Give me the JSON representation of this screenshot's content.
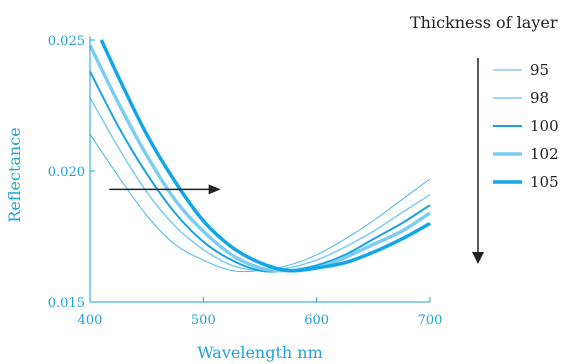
{
  "chart_data": {
    "type": "line",
    "xlabel": "Wavelength nm",
    "ylabel": "Reflectance",
    "xlim": [
      400,
      700
    ],
    "ylim": [
      0.015,
      0.025
    ],
    "xticks": [
      400,
      500,
      600,
      700
    ],
    "xtick_labels": [
      "400",
      "500",
      "600",
      "700"
    ],
    "yticks": [
      0.015,
      0.02,
      0.025
    ],
    "ytick_labels": [
      "0.015",
      "0.020",
      "0.025"
    ],
    "grid": false,
    "legend_title": "Thickness of layer",
    "legend_position": "right",
    "series": [
      {
        "name": "95",
        "color": "#4ab7e8",
        "width": 1.0,
        "min_x": 530,
        "min_y": 0.0162,
        "x": [
          400,
          425,
          450,
          475,
          500,
          525,
          550,
          575,
          600,
          625,
          650,
          675,
          700
        ],
        "y": [
          0.0214,
          0.0198,
          0.0183,
          0.0172,
          0.0166,
          0.0162,
          0.0162,
          0.0164,
          0.0168,
          0.0174,
          0.0181,
          0.0189,
          0.0197
        ]
      },
      {
        "name": "98",
        "color": "#7ccdf1",
        "width": 1.5,
        "min_x": 545,
        "min_y": 0.0162,
        "x": [
          400,
          425,
          450,
          475,
          500,
          525,
          550,
          575,
          600,
          625,
          650,
          675,
          700
        ],
        "y": [
          0.0228,
          0.0209,
          0.0192,
          0.0179,
          0.017,
          0.0164,
          0.0162,
          0.0163,
          0.0166,
          0.0171,
          0.0177,
          0.0184,
          0.0191
        ]
      },
      {
        "name": "100",
        "color": "#1aa3e0",
        "width": 2.0,
        "min_x": 555,
        "min_y": 0.0162,
        "x": [
          400,
          425,
          450,
          475,
          500,
          525,
          550,
          575,
          600,
          625,
          650,
          675,
          700
        ],
        "y": [
          0.0238,
          0.0217,
          0.0199,
          0.0184,
          0.0173,
          0.0166,
          0.0162,
          0.0162,
          0.0164,
          0.0168,
          0.0174,
          0.018,
          0.0187
        ]
      },
      {
        "name": "102",
        "color": "#7ccdf1",
        "width": 3.5,
        "min_x": 565,
        "min_y": 0.0162,
        "x": [
          400,
          425,
          450,
          475,
          500,
          525,
          550,
          575,
          600,
          625,
          650,
          675,
          700
        ],
        "y": [
          0.0248,
          0.0226,
          0.0206,
          0.0189,
          0.0177,
          0.0168,
          0.0163,
          0.0162,
          0.0163,
          0.0167,
          0.0172,
          0.0177,
          0.0184
        ]
      },
      {
        "name": "105",
        "color": "#12a6e6",
        "width": 3.5,
        "min_x": 575,
        "min_y": 0.0162,
        "x": [
          410,
          425,
          450,
          475,
          500,
          525,
          550,
          575,
          600,
          625,
          650,
          675,
          700
        ],
        "y": [
          0.025,
          0.0236,
          0.0214,
          0.0196,
          0.0181,
          0.0171,
          0.0165,
          0.0162,
          0.0163,
          0.0165,
          0.0169,
          0.0174,
          0.018
        ]
      }
    ],
    "annotation_arrow_x_range": [
      410,
      480
    ],
    "annotation_arrow_y": 0.0193
  },
  "colors": {
    "axis": "#1fa2d8",
    "text": "#222222",
    "arrow": "#222222"
  }
}
